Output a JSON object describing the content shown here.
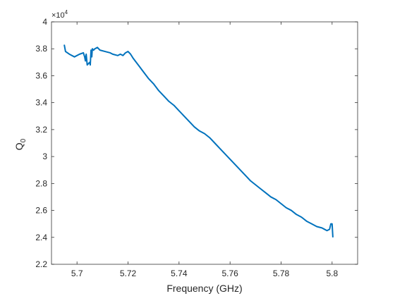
{
  "chart_data": {
    "type": "line",
    "title": "",
    "xlabel": "Frequency (GHz)",
    "ylabel": "Q",
    "ylabel_subscript": "0",
    "y_exponent_label": "×10",
    "y_exponent_power": "4",
    "xlim": [
      5.69,
      5.81
    ],
    "ylim": [
      2.2,
      4.0
    ],
    "xticks": [
      5.7,
      5.72,
      5.74,
      5.76,
      5.78,
      5.8
    ],
    "xtick_labels": [
      "5.7",
      "5.72",
      "5.74",
      "5.76",
      "5.78",
      "5.8"
    ],
    "yticks": [
      2.2,
      2.4,
      2.6,
      2.8,
      3.0,
      3.2,
      3.4,
      3.6,
      3.8,
      4.0
    ],
    "ytick_labels": [
      "2.2",
      "2.4",
      "2.6",
      "2.8",
      "3",
      "3.2",
      "3.4",
      "3.6",
      "3.8",
      "4"
    ],
    "grid": false,
    "line_color": "#0072BD",
    "axis_color": "#262626",
    "series": [
      {
        "x": [
          5.695,
          5.6955,
          5.697,
          5.699,
          5.701,
          5.7025,
          5.703,
          5.7033,
          5.7036,
          5.704,
          5.7045,
          5.705,
          5.7052,
          5.7055,
          5.7058,
          5.706,
          5.7065,
          5.707,
          5.708,
          5.709,
          5.711,
          5.713,
          5.714,
          5.716,
          5.717,
          5.718,
          5.719,
          5.72,
          5.721,
          5.722,
          5.724,
          5.726,
          5.728,
          5.73,
          5.732,
          5.734,
          5.736,
          5.738,
          5.74,
          5.742,
          5.744,
          5.746,
          5.748,
          5.75,
          5.752,
          5.754,
          5.756,
          5.758,
          5.76,
          5.762,
          5.764,
          5.766,
          5.768,
          5.77,
          5.772,
          5.774,
          5.776,
          5.778,
          5.78,
          5.782,
          5.784,
          5.786,
          5.788,
          5.79,
          5.792,
          5.794,
          5.796,
          5.797,
          5.798,
          5.799,
          5.7995,
          5.8,
          5.8003
        ],
        "y": [
          3.83,
          3.78,
          3.76,
          3.74,
          3.76,
          3.77,
          3.74,
          3.71,
          3.76,
          3.68,
          3.69,
          3.7,
          3.68,
          3.79,
          3.74,
          3.8,
          3.79,
          3.8,
          3.81,
          3.79,
          3.78,
          3.77,
          3.76,
          3.75,
          3.76,
          3.75,
          3.77,
          3.78,
          3.76,
          3.73,
          3.68,
          3.63,
          3.58,
          3.54,
          3.49,
          3.45,
          3.41,
          3.38,
          3.34,
          3.3,
          3.26,
          3.22,
          3.19,
          3.17,
          3.14,
          3.1,
          3.06,
          3.02,
          2.98,
          2.94,
          2.9,
          2.86,
          2.82,
          2.79,
          2.76,
          2.73,
          2.7,
          2.68,
          2.65,
          2.62,
          2.6,
          2.57,
          2.55,
          2.52,
          2.5,
          2.48,
          2.47,
          2.46,
          2.45,
          2.46,
          2.5,
          2.5,
          2.4
        ]
      }
    ]
  }
}
